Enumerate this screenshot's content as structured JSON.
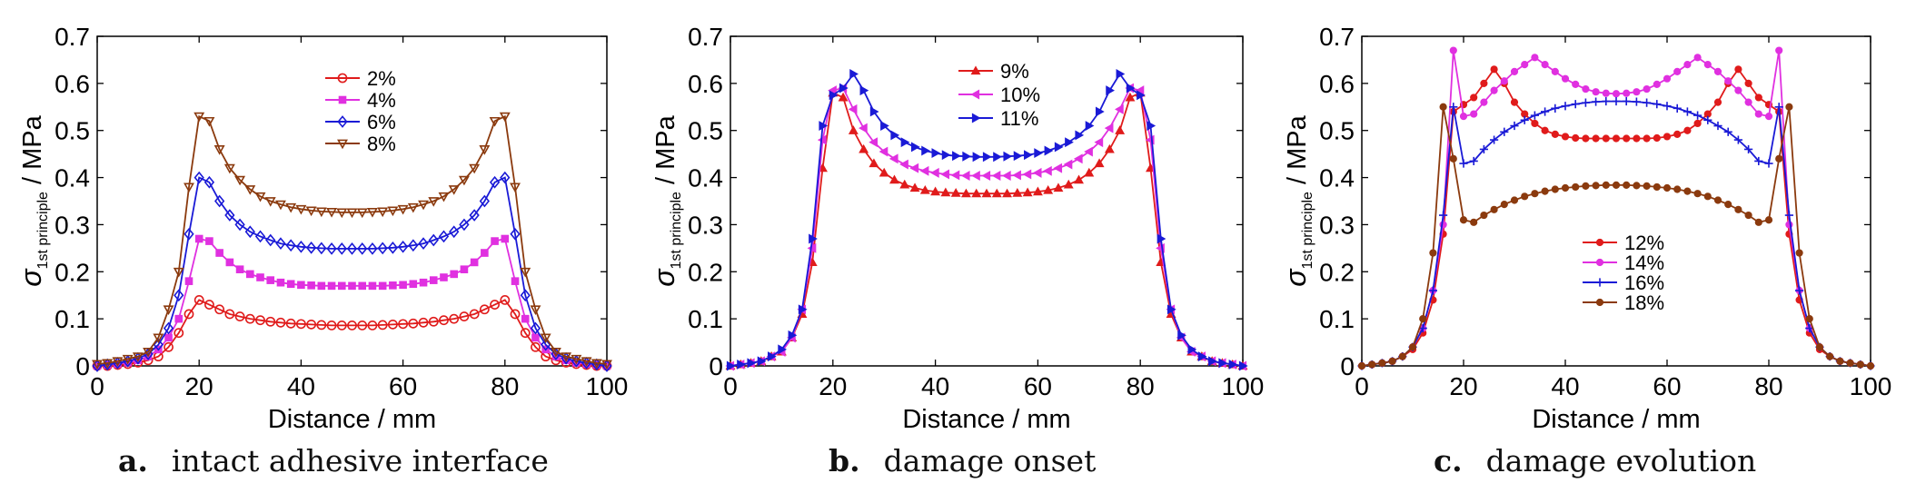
{
  "figure": {
    "captions": [
      {
        "letter": "a.",
        "text": "intact adhesive interface"
      },
      {
        "letter": "b.",
        "text": "damage onset"
      },
      {
        "letter": "c.",
        "text": "damage evolution"
      }
    ]
  },
  "chart_data": [
    {
      "type": "line",
      "xlabel": "Distance / mm",
      "ylabel": "σ 1st principle / MPa",
      "xlim": [
        0,
        100
      ],
      "ylim": [
        0,
        0.7
      ],
      "xticks": [
        0,
        20,
        40,
        60,
        80,
        100
      ],
      "yticks": [
        0,
        0.1,
        0.2,
        0.3,
        0.4,
        0.5,
        0.6,
        0.7
      ],
      "grid": false,
      "legend_position": "top-center",
      "x": [
        0,
        2,
        4,
        6,
        8,
        10,
        12,
        14,
        16,
        18,
        20,
        22,
        24,
        26,
        28,
        30,
        32,
        34,
        36,
        38,
        40,
        42,
        44,
        46,
        48,
        50,
        52,
        54,
        56,
        58,
        60,
        62,
        64,
        66,
        68,
        70,
        72,
        74,
        76,
        78,
        80,
        82,
        84,
        86,
        88,
        90,
        92,
        94,
        96,
        98,
        100
      ],
      "series": [
        {
          "name": "2%",
          "color": "#e01b1b",
          "marker": "circle",
          "values": [
            0,
            0,
            0.002,
            0.004,
            0.007,
            0.012,
            0.02,
            0.04,
            0.07,
            0.11,
            0.14,
            0.13,
            0.12,
            0.11,
            0.105,
            0.1,
            0.097,
            0.094,
            0.092,
            0.09,
            0.089,
            0.088,
            0.087,
            0.086,
            0.086,
            0.086,
            0.086,
            0.086,
            0.087,
            0.088,
            0.089,
            0.09,
            0.092,
            0.094,
            0.097,
            0.1,
            0.105,
            0.11,
            0.12,
            0.13,
            0.14,
            0.11,
            0.07,
            0.04,
            0.02,
            0.012,
            0.007,
            0.004,
            0.002,
            0,
            0
          ]
        },
        {
          "name": "4%",
          "color": "#e030e0",
          "marker": "square",
          "values": [
            0,
            0.002,
            0.004,
            0.007,
            0.012,
            0.02,
            0.035,
            0.06,
            0.1,
            0.18,
            0.27,
            0.265,
            0.24,
            0.22,
            0.205,
            0.195,
            0.188,
            0.182,
            0.177,
            0.174,
            0.172,
            0.171,
            0.17,
            0.17,
            0.17,
            0.17,
            0.17,
            0.17,
            0.17,
            0.171,
            0.172,
            0.174,
            0.177,
            0.182,
            0.188,
            0.195,
            0.205,
            0.22,
            0.24,
            0.265,
            0.27,
            0.18,
            0.1,
            0.06,
            0.035,
            0.02,
            0.012,
            0.007,
            0.004,
            0.002,
            0
          ]
        },
        {
          "name": "6%",
          "color": "#1a1ad6",
          "marker": "diamond",
          "values": [
            0,
            0.003,
            0.006,
            0.01,
            0.016,
            0.025,
            0.045,
            0.08,
            0.15,
            0.28,
            0.4,
            0.39,
            0.35,
            0.32,
            0.3,
            0.285,
            0.275,
            0.267,
            0.26,
            0.256,
            0.253,
            0.251,
            0.25,
            0.249,
            0.249,
            0.249,
            0.249,
            0.249,
            0.25,
            0.251,
            0.253,
            0.256,
            0.26,
            0.267,
            0.275,
            0.285,
            0.3,
            0.32,
            0.35,
            0.39,
            0.4,
            0.28,
            0.15,
            0.08,
            0.045,
            0.025,
            0.016,
            0.01,
            0.006,
            0.003,
            0
          ]
        },
        {
          "name": "8%",
          "color": "#8b3a0e",
          "marker": "triangle-down",
          "values": [
            0.004,
            0.006,
            0.01,
            0.015,
            0.02,
            0.03,
            0.06,
            0.12,
            0.2,
            0.38,
            0.53,
            0.52,
            0.46,
            0.42,
            0.395,
            0.375,
            0.36,
            0.35,
            0.343,
            0.337,
            0.333,
            0.33,
            0.328,
            0.327,
            0.326,
            0.326,
            0.326,
            0.327,
            0.328,
            0.33,
            0.333,
            0.337,
            0.343,
            0.35,
            0.36,
            0.375,
            0.395,
            0.42,
            0.46,
            0.52,
            0.53,
            0.38,
            0.2,
            0.12,
            0.06,
            0.03,
            0.02,
            0.015,
            0.01,
            0.006,
            0.004
          ]
        }
      ]
    },
    {
      "type": "line",
      "xlabel": "Distance / mm",
      "ylabel": "σ 1st principle / MPa",
      "xlim": [
        0,
        100
      ],
      "ylim": [
        0,
        0.7
      ],
      "xticks": [
        0,
        20,
        40,
        60,
        80,
        100
      ],
      "yticks": [
        0,
        0.1,
        0.2,
        0.3,
        0.4,
        0.5,
        0.6,
        0.7
      ],
      "grid": false,
      "legend_position": "top-center",
      "x": [
        0,
        2,
        4,
        6,
        8,
        10,
        12,
        14,
        16,
        18,
        20,
        22,
        24,
        26,
        28,
        30,
        32,
        34,
        36,
        38,
        40,
        42,
        44,
        46,
        48,
        50,
        52,
        54,
        56,
        58,
        60,
        62,
        64,
        66,
        68,
        70,
        72,
        74,
        76,
        78,
        80,
        82,
        84,
        86,
        88,
        90,
        92,
        94,
        96,
        98,
        100
      ],
      "series": [
        {
          "name": "9%",
          "color": "#e01b1b",
          "marker": "triangle-up",
          "values": [
            0,
            0.003,
            0.006,
            0.01,
            0.02,
            0.03,
            0.06,
            0.11,
            0.22,
            0.42,
            0.58,
            0.57,
            0.5,
            0.46,
            0.43,
            0.41,
            0.395,
            0.385,
            0.378,
            0.373,
            0.37,
            0.368,
            0.367,
            0.366,
            0.366,
            0.366,
            0.366,
            0.366,
            0.367,
            0.368,
            0.37,
            0.373,
            0.378,
            0.385,
            0.395,
            0.41,
            0.43,
            0.46,
            0.5,
            0.57,
            0.58,
            0.42,
            0.22,
            0.11,
            0.06,
            0.03,
            0.02,
            0.01,
            0.006,
            0.003,
            0
          ]
        },
        {
          "name": "10%",
          "color": "#e030e0",
          "marker": "triangle-left",
          "values": [
            0,
            0.003,
            0.006,
            0.01,
            0.02,
            0.03,
            0.06,
            0.12,
            0.25,
            0.48,
            0.585,
            0.59,
            0.545,
            0.505,
            0.475,
            0.455,
            0.44,
            0.428,
            0.42,
            0.414,
            0.41,
            0.407,
            0.405,
            0.404,
            0.404,
            0.404,
            0.404,
            0.404,
            0.405,
            0.407,
            0.41,
            0.414,
            0.42,
            0.428,
            0.44,
            0.455,
            0.475,
            0.505,
            0.545,
            0.59,
            0.585,
            0.48,
            0.25,
            0.12,
            0.06,
            0.03,
            0.02,
            0.01,
            0.006,
            0.003,
            0
          ]
        },
        {
          "name": "11%",
          "color": "#1a1ad6",
          "marker": "triangle-right",
          "values": [
            0,
            0.003,
            0.006,
            0.01,
            0.02,
            0.035,
            0.065,
            0.12,
            0.27,
            0.51,
            0.575,
            0.59,
            0.62,
            0.585,
            0.54,
            0.51,
            0.49,
            0.475,
            0.465,
            0.457,
            0.452,
            0.448,
            0.446,
            0.445,
            0.444,
            0.444,
            0.444,
            0.445,
            0.446,
            0.448,
            0.452,
            0.457,
            0.465,
            0.475,
            0.49,
            0.51,
            0.54,
            0.585,
            0.62,
            0.59,
            0.575,
            0.51,
            0.27,
            0.12,
            0.065,
            0.035,
            0.02,
            0.01,
            0.006,
            0.003,
            0
          ]
        }
      ]
    },
    {
      "type": "line",
      "xlabel": "Distance / mm",
      "ylabel": "σ 1st principle / MPa",
      "xlim": [
        0,
        100
      ],
      "ylim": [
        0,
        0.7
      ],
      "xticks": [
        0,
        20,
        40,
        60,
        80,
        100
      ],
      "yticks": [
        0,
        0.1,
        0.2,
        0.3,
        0.4,
        0.5,
        0.6,
        0.7
      ],
      "grid": false,
      "legend_position": "center",
      "x": [
        0,
        2,
        4,
        6,
        8,
        10,
        12,
        14,
        16,
        18,
        20,
        22,
        24,
        26,
        28,
        30,
        32,
        34,
        36,
        38,
        40,
        42,
        44,
        46,
        48,
        50,
        52,
        54,
        56,
        58,
        60,
        62,
        64,
        66,
        68,
        70,
        72,
        74,
        76,
        78,
        80,
        82,
        84,
        86,
        88,
        90,
        92,
        94,
        96,
        98,
        100
      ],
      "series": [
        {
          "name": "12%",
          "color": "#e01b1b",
          "marker": "circle-filled",
          "values": [
            0,
            0.003,
            0.006,
            0.01,
            0.02,
            0.035,
            0.07,
            0.14,
            0.28,
            0.54,
            0.555,
            0.57,
            0.6,
            0.63,
            0.6,
            0.56,
            0.535,
            0.515,
            0.5,
            0.492,
            0.487,
            0.484,
            0.483,
            0.483,
            0.483,
            0.483,
            0.483,
            0.483,
            0.483,
            0.484,
            0.487,
            0.492,
            0.5,
            0.515,
            0.535,
            0.56,
            0.6,
            0.63,
            0.6,
            0.57,
            0.555,
            0.54,
            0.28,
            0.14,
            0.07,
            0.035,
            0.02,
            0.01,
            0.006,
            0.003,
            0
          ]
        },
        {
          "name": "14%",
          "color": "#e030e0",
          "marker": "circle-filled",
          "values": [
            0,
            0.003,
            0.006,
            0.01,
            0.02,
            0.04,
            0.08,
            0.16,
            0.3,
            0.67,
            0.53,
            0.535,
            0.56,
            0.585,
            0.605,
            0.625,
            0.64,
            0.655,
            0.64,
            0.625,
            0.61,
            0.598,
            0.588,
            0.582,
            0.579,
            0.578,
            0.579,
            0.582,
            0.588,
            0.598,
            0.61,
            0.625,
            0.64,
            0.655,
            0.64,
            0.625,
            0.605,
            0.585,
            0.56,
            0.535,
            0.53,
            0.67,
            0.3,
            0.16,
            0.08,
            0.04,
            0.02,
            0.01,
            0.006,
            0.003,
            0
          ]
        },
        {
          "name": "16%",
          "color": "#1a1ad6",
          "marker": "plus",
          "values": [
            0,
            0.003,
            0.006,
            0.01,
            0.02,
            0.04,
            0.08,
            0.16,
            0.32,
            0.55,
            0.43,
            0.435,
            0.46,
            0.48,
            0.497,
            0.51,
            0.522,
            0.532,
            0.54,
            0.547,
            0.552,
            0.556,
            0.559,
            0.561,
            0.562,
            0.562,
            0.562,
            0.561,
            0.559,
            0.556,
            0.552,
            0.547,
            0.54,
            0.532,
            0.522,
            0.51,
            0.497,
            0.48,
            0.46,
            0.435,
            0.43,
            0.55,
            0.32,
            0.16,
            0.08,
            0.04,
            0.02,
            0.01,
            0.006,
            0.003,
            0
          ]
        },
        {
          "name": "18%",
          "color": "#8b3a0e",
          "marker": "circle-filled",
          "values": [
            0,
            0.003,
            0.006,
            0.01,
            0.02,
            0.04,
            0.1,
            0.24,
            0.55,
            0.44,
            0.31,
            0.305,
            0.32,
            0.332,
            0.343,
            0.352,
            0.36,
            0.366,
            0.371,
            0.375,
            0.378,
            0.38,
            0.382,
            0.383,
            0.384,
            0.384,
            0.384,
            0.383,
            0.382,
            0.38,
            0.378,
            0.375,
            0.371,
            0.366,
            0.36,
            0.352,
            0.343,
            0.332,
            0.32,
            0.305,
            0.31,
            0.44,
            0.55,
            0.24,
            0.1,
            0.04,
            0.02,
            0.01,
            0.006,
            0.003,
            0
          ]
        }
      ]
    }
  ]
}
